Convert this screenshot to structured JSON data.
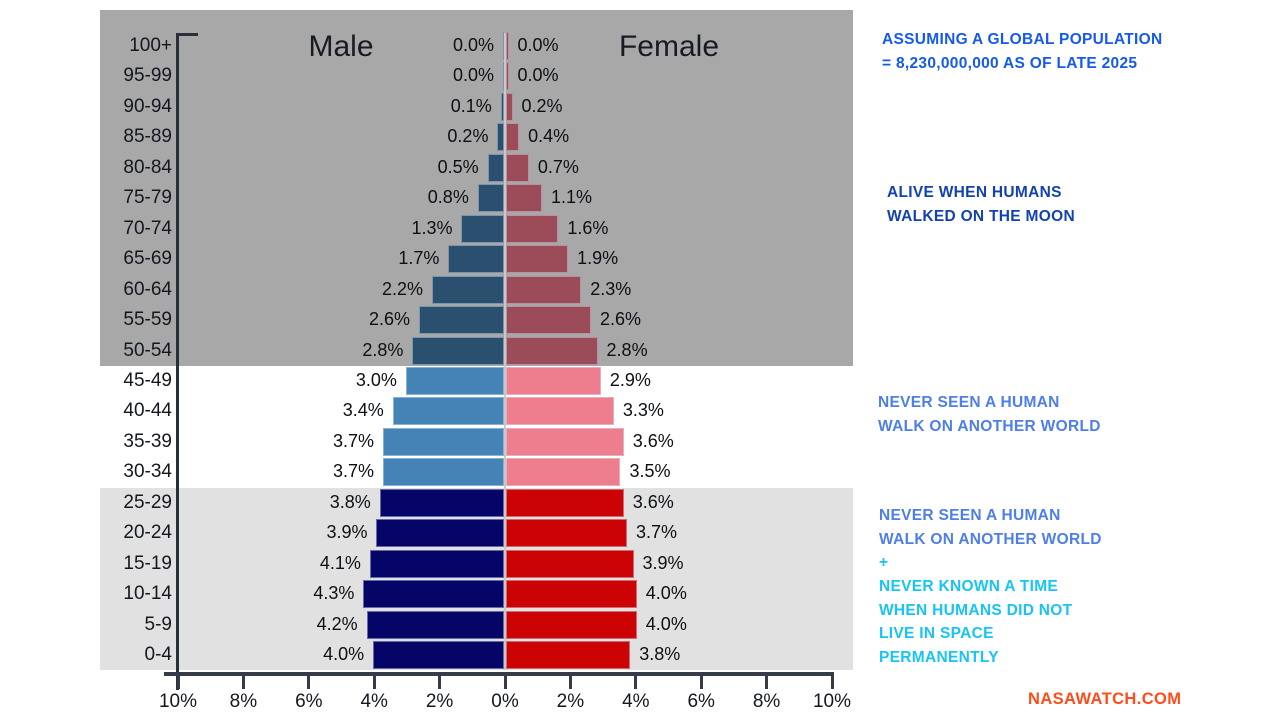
{
  "titles": {
    "male": "Male",
    "female": "Female"
  },
  "chart_data": {
    "type": "bar",
    "variant": "population-pyramid",
    "unit": "%",
    "categories": [
      "100+",
      "95-99",
      "90-94",
      "85-89",
      "80-84",
      "75-79",
      "70-74",
      "65-69",
      "60-64",
      "55-59",
      "50-54",
      "45-49",
      "40-44",
      "35-39",
      "30-34",
      "25-29",
      "20-24",
      "15-19",
      "10-14",
      "5-9",
      "0-4"
    ],
    "series": [
      {
        "name": "Male",
        "values": [
          0.0,
          0.0,
          0.1,
          0.2,
          0.5,
          0.8,
          1.3,
          1.7,
          2.2,
          2.6,
          2.8,
          3.0,
          3.4,
          3.7,
          3.7,
          3.8,
          3.9,
          4.1,
          4.3,
          4.2,
          4.0
        ]
      },
      {
        "name": "Female",
        "values": [
          0.0,
          0.0,
          0.2,
          0.4,
          0.7,
          1.1,
          1.6,
          1.9,
          2.3,
          2.6,
          2.8,
          2.9,
          3.3,
          3.6,
          3.5,
          3.6,
          3.7,
          3.9,
          4.0,
          4.0,
          3.8
        ]
      }
    ],
    "x_tick_labels": [
      "10%",
      "8%",
      "6%",
      "4%",
      "2%",
      "0%",
      "2%",
      "4%",
      "6%",
      "8%",
      "10%"
    ],
    "xlim_each_side": 10,
    "grid": false,
    "bands": [
      {
        "row_start": 0,
        "row_end": 10,
        "bg": "#a8a8a8",
        "male_color": "#2b506f",
        "female_color": "#9c4b58"
      },
      {
        "row_start": 11,
        "row_end": 14,
        "bg": "#ffffff",
        "male_color": "#4583b7",
        "female_color": "#ee7e8e"
      },
      {
        "row_start": 15,
        "row_end": 20,
        "bg": "#e1e1e1",
        "male_color": "#050568",
        "female_color": "#cb0305"
      }
    ]
  },
  "annotations": {
    "assumption": {
      "color": "#1659ee",
      "lines": [
        "ASSUMING A GLOBAL POPULATION",
        "= 8,230,000,000 AS OF LATE 2025"
      ]
    },
    "moon": {
      "color": "#1342b0",
      "lines": [
        "ALIVE WHEN HUMANS",
        "WALKED ON THE MOON"
      ]
    },
    "never_mid": {
      "color": "#4e7ee9",
      "lines": [
        "NEVER SEEN A HUMAN",
        "WALK ON ANOTHER WORLD"
      ]
    },
    "never_low": {
      "color": "#4e7ee9",
      "lines": [
        "NEVER SEEN A HUMAN",
        "WALK ON ANOTHER WORLD"
      ]
    },
    "plus": {
      "color": "#18c4f5",
      "text": "+"
    },
    "space": {
      "color": "#18c4f5",
      "lines": [
        "NEVER KNOWN A TIME",
        "WHEN HUMANS DID NOT",
        "LIVE IN SPACE",
        "PERMANENTLY"
      ]
    },
    "watermark": {
      "color": "#ff4c1a",
      "text": "NASAWATCH.COM"
    }
  }
}
